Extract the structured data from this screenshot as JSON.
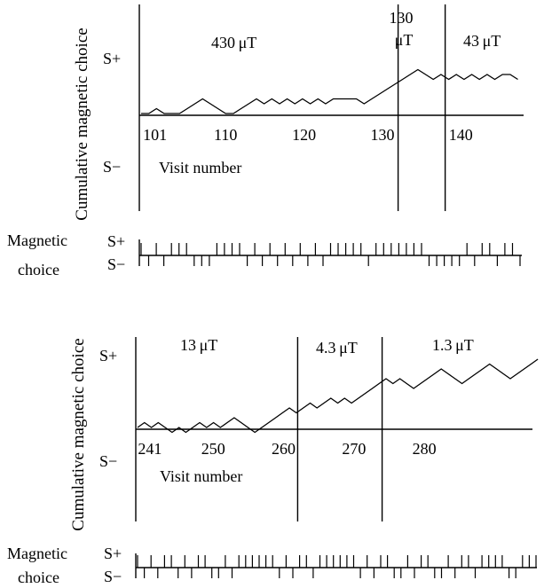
{
  "chart_data": [
    {
      "type": "line",
      "ylabel": "Cumulative magnetic choice",
      "xlabel": "Visit number",
      "y_top_label": "S+",
      "y_bottom_label": "S−",
      "xlim": [
        99,
        148
      ],
      "ylim": [
        -4,
        9
      ],
      "x_ticks": [
        "101",
        "110",
        "120",
        "130",
        "140"
      ],
      "x_tick_values": [
        101,
        110,
        120,
        130,
        140
      ],
      "phases": [
        {
          "label": "430 μT",
          "start": 99,
          "end": 132
        },
        {
          "label": "130 μT",
          "start": 132,
          "end": 138
        },
        {
          "label": "43 μT",
          "start": 138,
          "end": 148
        }
      ],
      "phase_boundaries": [
        132,
        138
      ],
      "cumulative": [
        0,
        0,
        1,
        0,
        0,
        0,
        1,
        2,
        3,
        2,
        1,
        0,
        0,
        1,
        2,
        3,
        2,
        3,
        2,
        3,
        2,
        3,
        2,
        3,
        2,
        3,
        3,
        3,
        3,
        2,
        3,
        4,
        5,
        6,
        7,
        8,
        9,
        8,
        7,
        8,
        7,
        8,
        7,
        8,
        7,
        8,
        7,
        8,
        8,
        7
      ]
    },
    {
      "type": "line",
      "ylabel": "Cumulative magnetic choice",
      "xlabel": "Visit number",
      "y_top_label": "S+",
      "y_bottom_label": "S−",
      "xlim": [
        239,
        297
      ],
      "ylim": [
        -4,
        9
      ],
      "x_ticks": [
        "241",
        "250",
        "260",
        "270",
        "280"
      ],
      "x_tick_values": [
        241,
        250,
        260,
        270,
        280
      ],
      "phases": [
        {
          "label": "13 μT",
          "start": 239,
          "end": 262
        },
        {
          "label": "4.3 μT",
          "start": 262,
          "end": 274
        },
        {
          "label": "1.3 μT",
          "start": 274,
          "end": 297
        }
      ],
      "phase_boundaries": [
        262,
        274
      ],
      "cumulative": [
        0,
        1,
        0,
        1,
        0,
        -1,
        0,
        -1,
        0,
        1,
        0,
        1,
        0,
        1,
        2,
        1,
        0,
        -1,
        0,
        1,
        2,
        3,
        4,
        3,
        4,
        5,
        4,
        5,
        6,
        5,
        6,
        5,
        6,
        7,
        8,
        9,
        10,
        9,
        10,
        9,
        8,
        9,
        10,
        11,
        12,
        11,
        10,
        9,
        10,
        11,
        12,
        13,
        12,
        11,
        10,
        11,
        12,
        13,
        14
      ]
    }
  ],
  "choice_rows": [
    {
      "label_line1": "Magnetic",
      "label_line2": "choice",
      "s_plus": "S+",
      "s_minus": "S−",
      "choices": "+-+-+++---++++-+-+-+-+-+-+++++-+++++++-----+-++-++-"
    },
    {
      "label_line1": "Magnetic",
      "label_line2": "choice",
      "s_plus": "S+",
      "s_minus": "S−",
      "choices": "+-+-++-+-++--+-++++++-+-++-++++++-+-++--+-++--+-++-++++--+++"
    }
  ]
}
